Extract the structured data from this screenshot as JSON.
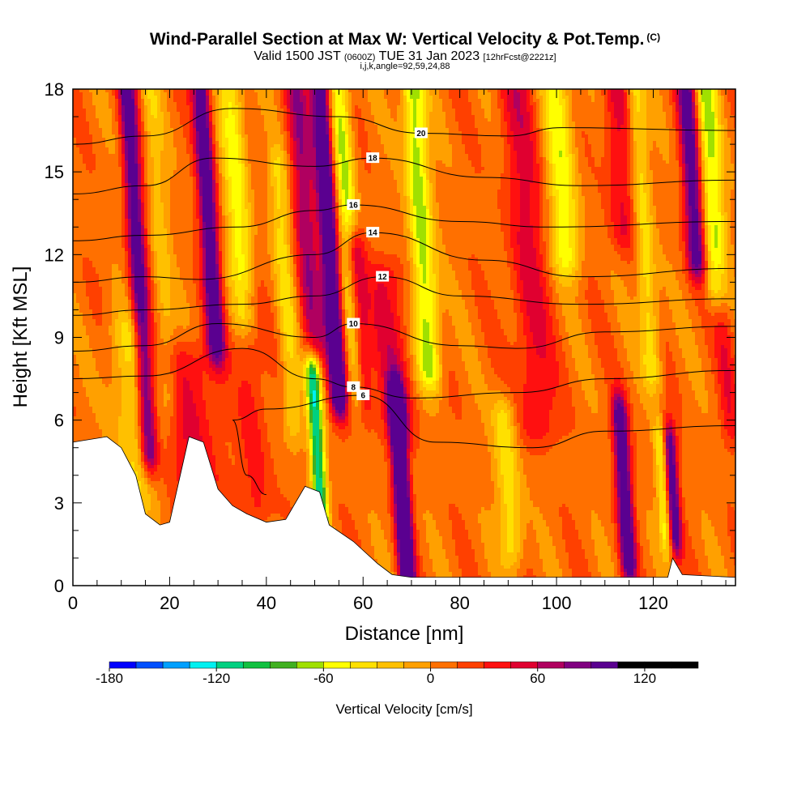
{
  "header": {
    "title": "Wind-Parallel Section at Max W: Vertical Velocity & Pot.Temp.",
    "title_tag": "(C)",
    "valid_pre": "Valid 1500 JST",
    "valid_zulu": "(0600Z)",
    "valid_date": "TUE 31 Jan 2023",
    "forecast": "[12hrFcst@2221z]",
    "indices": "i,j,k,angle=92,59,24,88"
  },
  "chart_data": {
    "type": "heatmap",
    "title": "Wind-Parallel Section at Max W: Vertical Velocity & Pot.Temp.",
    "xlabel": "Distance [nm]",
    "ylabel": "Height [Kft MSL]",
    "xlim": [
      0,
      137
    ],
    "ylim": [
      0,
      18
    ],
    "x_ticks": [
      "0",
      "20",
      "40",
      "60",
      "80",
      "100",
      "120"
    ],
    "y_ticks": [
      "0",
      "3",
      "6",
      "9",
      "12",
      "15",
      "18"
    ],
    "colorbar": {
      "label": "Vertical Velocity [cm/s]",
      "range": [
        -180,
        150
      ],
      "step": 15,
      "tick_labels": [
        "-180",
        "-120",
        "-60",
        "0",
        "60",
        "120"
      ],
      "colors": [
        "#0000ff",
        "#0050ff",
        "#00a0ff",
        "#00f0f0",
        "#00d080",
        "#10c040",
        "#40b020",
        "#a0e000",
        "#ffff00",
        "#ffe000",
        "#ffc000",
        "#ffa000",
        "#ff7000",
        "#ff4000",
        "#ff1010",
        "#e00030",
        "#b00060",
        "#800080",
        "#5a0090"
      ]
    },
    "terrain": [
      [
        0,
        5.2
      ],
      [
        7,
        5.4
      ],
      [
        10,
        5.0
      ],
      [
        13,
        4.0
      ],
      [
        15,
        2.6
      ],
      [
        18,
        2.2
      ],
      [
        20,
        2.3
      ],
      [
        24,
        5.4
      ],
      [
        27,
        5.2
      ],
      [
        30,
        3.5
      ],
      [
        33,
        2.9
      ],
      [
        36,
        2.6
      ],
      [
        40,
        2.3
      ],
      [
        44,
        2.4
      ],
      [
        48,
        3.6
      ],
      [
        51,
        3.4
      ],
      [
        53,
        2.2
      ],
      [
        58,
        1.6
      ],
      [
        63,
        0.8
      ],
      [
        66,
        0.4
      ],
      [
        70,
        0.3
      ],
      [
        123,
        0.3
      ],
      [
        124,
        1.0
      ],
      [
        126,
        0.4
      ],
      [
        137,
        0.3
      ]
    ],
    "velocity_bands": [
      {
        "x": 12,
        "w": -40,
        "xw": 4,
        "z0": 3.5,
        "z1": 9
      },
      {
        "x": 13.5,
        "w": 100,
        "xw": 1.8,
        "z0": 5,
        "z1": 18
      },
      {
        "x": 18,
        "w": -30,
        "xw": 2,
        "z0": 7,
        "z1": 18
      },
      {
        "x": 25,
        "w": 40,
        "xw": 5,
        "z0": 4,
        "z1": 8
      },
      {
        "x": 28,
        "w": 110,
        "xw": 1.8,
        "z0": 9,
        "z1": 18
      },
      {
        "x": 34,
        "w": -60,
        "xw": 2.5,
        "z0": 10,
        "z1": 18
      },
      {
        "x": 37,
        "w": 30,
        "xw": 3,
        "z0": 3,
        "z1": 10
      },
      {
        "x": 44,
        "w": -40,
        "xw": 2,
        "z0": 6,
        "z1": 15
      },
      {
        "x": 48,
        "w": 60,
        "xw": 2.5,
        "z0": 9,
        "z1": 18
      },
      {
        "x": 50.5,
        "w": -120,
        "xw": 1.5,
        "z0": 2.5,
        "z1": 7.5
      },
      {
        "x": 53,
        "w": 130,
        "xw": 1.8,
        "z0": 7,
        "z1": 18
      },
      {
        "x": 57,
        "w": -70,
        "xw": 2,
        "z0": 7,
        "z1": 18
      },
      {
        "x": 59,
        "w": 80,
        "xw": 2,
        "z0": 7,
        "z1": 12
      },
      {
        "x": 68,
        "w": 150,
        "xw": 1.6,
        "z0": 0.5,
        "z1": 6.5
      },
      {
        "x": 72,
        "w": -80,
        "xw": 2.5,
        "z0": 8,
        "z1": 18
      },
      {
        "x": 66,
        "w": 40,
        "xw": 4,
        "z0": 6,
        "z1": 11
      },
      {
        "x": 90,
        "w": -50,
        "xw": 2.5,
        "z0": 1.5,
        "z1": 6
      },
      {
        "x": 94,
        "w": 40,
        "xw": 4,
        "z0": 6,
        "z1": 18
      },
      {
        "x": 101,
        "w": -60,
        "xw": 3,
        "z0": 12,
        "z1": 18
      },
      {
        "x": 114,
        "w": 110,
        "xw": 1.6,
        "z0": 1,
        "z1": 6
      },
      {
        "x": 113,
        "w": 40,
        "xw": 3,
        "z0": 13,
        "z1": 18
      },
      {
        "x": 118,
        "w": -50,
        "xw": 2,
        "z0": 8,
        "z1": 18
      },
      {
        "x": 122,
        "w": -60,
        "xw": 1.2,
        "z0": 2,
        "z1": 5
      },
      {
        "x": 124,
        "w": 100,
        "xw": 1.3,
        "z0": 2,
        "z1": 5
      },
      {
        "x": 128,
        "w": 100,
        "xw": 2,
        "z0": 12,
        "z1": 18
      },
      {
        "x": 132,
        "w": -70,
        "xw": 2.5,
        "z0": 11,
        "z1": 18
      },
      {
        "x": 135,
        "w": 30,
        "xw": 2,
        "z0": 6,
        "z1": 11
      }
    ],
    "theta_contours": [
      {
        "label": "6",
        "pts": [
          [
            40,
            3.3
          ],
          [
            36,
            4.0
          ],
          [
            33,
            6.0
          ],
          [
            40,
            6.4
          ],
          [
            60,
            6.9
          ],
          [
            75,
            5.2
          ],
          [
            95,
            5.0
          ],
          [
            110,
            5.6
          ],
          [
            137,
            5.8
          ]
        ]
      },
      {
        "label": "8",
        "pts": [
          [
            0,
            7.5
          ],
          [
            15,
            7.6
          ],
          [
            35,
            8.6
          ],
          [
            50,
            7.5
          ],
          [
            58,
            7.2
          ],
          [
            70,
            6.8
          ],
          [
            92,
            7.0
          ],
          [
            110,
            7.5
          ],
          [
            137,
            7.8
          ]
        ]
      },
      {
        "label": "10",
        "pts": [
          [
            0,
            8.5
          ],
          [
            15,
            8.7
          ],
          [
            30,
            9.5
          ],
          [
            50,
            9.0
          ],
          [
            58,
            9.5
          ],
          [
            80,
            8.7
          ],
          [
            92,
            8.6
          ],
          [
            110,
            9.2
          ],
          [
            137,
            9.4
          ]
        ]
      },
      {
        "label": "12",
        "pts": [
          [
            0,
            9.8
          ],
          [
            15,
            10.0
          ],
          [
            35,
            10.2
          ],
          [
            50,
            10.5
          ],
          [
            64,
            11.2
          ],
          [
            80,
            10.5
          ],
          [
            105,
            10.2
          ],
          [
            137,
            10.4
          ]
        ]
      },
      {
        "label": "14",
        "pts": [
          [
            0,
            11.0
          ],
          [
            15,
            11.2
          ],
          [
            26,
            11.1
          ],
          [
            50,
            12.0
          ],
          [
            62,
            12.8
          ],
          [
            85,
            11.8
          ],
          [
            105,
            11.2
          ],
          [
            137,
            11.5
          ]
        ]
      },
      {
        "label": "16",
        "pts": [
          [
            0,
            12.5
          ],
          [
            15,
            12.7
          ],
          [
            34,
            13.0
          ],
          [
            50,
            13.6
          ],
          [
            58,
            13.8
          ],
          [
            80,
            13.2
          ],
          [
            98,
            13.0
          ],
          [
            137,
            13.2
          ]
        ]
      },
      {
        "label": "18",
        "pts": [
          [
            0,
            14.2
          ],
          [
            15,
            14.5
          ],
          [
            29,
            15.5
          ],
          [
            50,
            15.2
          ],
          [
            62,
            15.5
          ],
          [
            85,
            14.8
          ],
          [
            105,
            14.5
          ],
          [
            137,
            14.7
          ]
        ]
      },
      {
        "label": "20",
        "pts": [
          [
            0,
            16.0
          ],
          [
            15,
            16.3
          ],
          [
            33,
            17.3
          ],
          [
            55,
            17.0
          ],
          [
            72,
            16.4
          ],
          [
            90,
            16.3
          ],
          [
            101,
            16.6
          ],
          [
            137,
            16.5
          ]
        ]
      }
    ]
  }
}
